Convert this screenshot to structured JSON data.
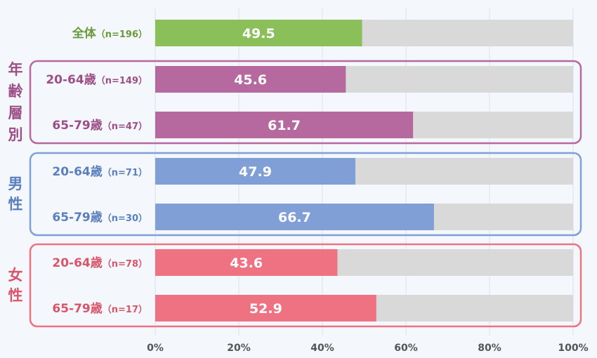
{
  "chart_data": {
    "type": "bar",
    "orientation": "horizontal",
    "stacked_with_remainder": true,
    "xlim": [
      0,
      100
    ],
    "ticks": [
      "0%",
      "20%",
      "40%",
      "60%",
      "80%",
      "100%"
    ],
    "grid": true,
    "rows": [
      {
        "label": "全体",
        "n": "（n=196）",
        "value": 49.5,
        "value_label": "49.5",
        "color": "#8bbf5a",
        "text_color": "#6a9a3a"
      },
      {
        "label": "20-64歳",
        "n": "（n=149）",
        "value": 45.6,
        "value_label": "45.6",
        "color": "#b5699f",
        "text_color": "#9b4f86",
        "group": 0
      },
      {
        "label": "65-79歳",
        "n": "（n=47）",
        "value": 61.7,
        "value_label": "61.7",
        "color": "#b5699f",
        "text_color": "#9b4f86",
        "group": 0
      },
      {
        "label": "20-64歳",
        "n": "（n=71）",
        "value": 47.9,
        "value_label": "47.9",
        "color": "#7f9fd6",
        "text_color": "#5a7fbf",
        "group": 1
      },
      {
        "label": "65-79歳",
        "n": "（n=30）",
        "value": 66.7,
        "value_label": "66.7",
        "color": "#7f9fd6",
        "text_color": "#5a7fbf",
        "group": 1
      },
      {
        "label": "20-64歳",
        "n": "（n=78）",
        "value": 43.6,
        "value_label": "43.6",
        "color": "#ef7282",
        "text_color": "#d9566a",
        "group": 2
      },
      {
        "label": "65-79歳",
        "n": "（n=17）",
        "value": 52.9,
        "value_label": "52.9",
        "color": "#ef7282",
        "text_color": "#d9566a",
        "group": 2
      }
    ],
    "groups": [
      {
        "name": "年齢層別",
        "chars": [
          "年",
          "齢",
          "層",
          "別"
        ],
        "border": "#b5699f",
        "text_color": "#9b4f86"
      },
      {
        "name": "男性",
        "chars": [
          "男",
          "性"
        ],
        "border": "#7f9fd6",
        "text_color": "#5a7fbf"
      },
      {
        "name": "女性",
        "chars": [
          "女",
          "性"
        ],
        "border": "#ef7282",
        "text_color": "#d9566a"
      }
    ],
    "remainder_color": "#d9d9d9",
    "grid_color": "#dde3ee",
    "tick_color": "#555555"
  }
}
